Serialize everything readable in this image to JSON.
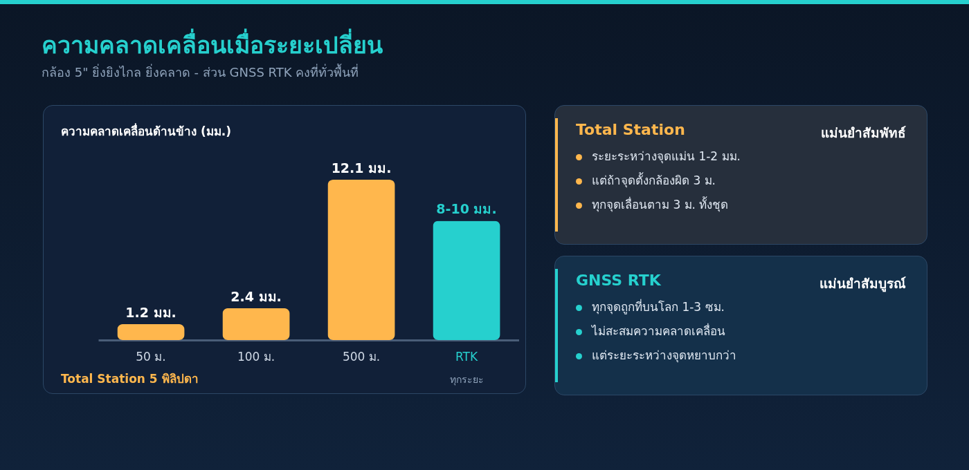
{
  "chart_data": [
    {
      "type": "bar",
      "title": "ความคลาดเคลื่อนเมื่อระยะเปลี่ยน",
      "subtitle": "กล้อง 5\" ยิ่งยิงไกล ยิ่งคลาด - ส่วน GNSS RTK คงที่ทั่วพื้นที่",
      "ylabel": "ความคลาดเคลื่อนด้านข้าง (มม.)",
      "categories": [
        "50 ม.",
        "100 ม.",
        "500 ม.",
        "RTK"
      ],
      "values": [
        1.2,
        2.4,
        12.1,
        9
      ],
      "colors": [
        "#ffb74d",
        "#ffb74d",
        "#ffb74d",
        "#26d0ce"
      ],
      "value_labels": [
        "1.2 มม.",
        "2.4 มม.",
        "12.1 มม.",
        "8-10 มม."
      ],
      "annotations": [
        "ทุกระยะ",
        "Total Station 5 พิลิปดา"
      ]
    },
    {
      "type": "other",
      "title": "Total Station",
      "subtitle": "แม่นยำสัมพัทธ์",
      "annotations": [
        "ระยะระหว่างจุดแม่น 1-2 มม.",
        "แต่ถ้าจุดตั้งกล้องผิด 3 ม.",
        "ทุกจุดเลื่อนตาม 3 ม. ทั้งชุด"
      ]
    },
    {
      "type": "other",
      "title": "GNSS RTK",
      "subtitle": "แม่นยำสัมบูรณ์",
      "annotations": [
        "ทุกจุดถูกที่บนโลก 1-3 ซม.",
        "ไม่สะสมความคลาดเคลื่อน",
        "แต่ระยะระหว่างจุดหยาบกว่า"
      ]
    }
  ]
}
